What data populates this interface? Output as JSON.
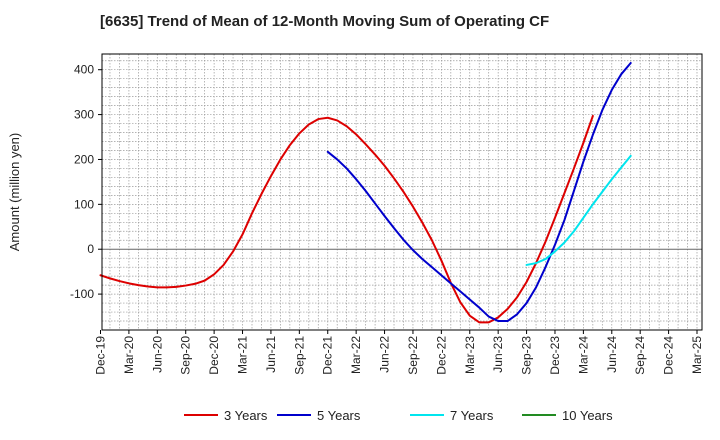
{
  "chart_data": {
    "type": "line",
    "title": "[6635]  Trend of Mean of 12-Month Moving Sum of Operating CF",
    "xlabel": "",
    "ylabel": "Amount (million yen)",
    "ylim": [
      -180,
      435
    ],
    "yticks": [
      -100,
      0,
      100,
      200,
      300,
      400
    ],
    "grid": true,
    "legend_position": "bottom",
    "x_tick_labels": [
      "Dec-19",
      "Mar-20",
      "Jun-20",
      "Sep-20",
      "Dec-20",
      "Mar-21",
      "Jun-21",
      "Sep-21",
      "Dec-21",
      "Mar-22",
      "Jun-22",
      "Sep-22",
      "Dec-22",
      "Mar-23",
      "Jun-23",
      "Sep-23",
      "Dec-23",
      "Mar-24",
      "Jun-24",
      "Sep-24",
      "Dec-24",
      "Mar-25"
    ],
    "series": [
      {
        "name": "3 Years",
        "color": "#dd0000",
        "start_index": 0,
        "values": [
          -58,
          -65,
          -71,
          -76,
          -80,
          -83,
          -85,
          -85,
          -84,
          -81,
          -77,
          -70,
          -56,
          -35,
          -5,
          33,
          80,
          123,
          163,
          200,
          232,
          258,
          278,
          290,
          293,
          287,
          274,
          256,
          234,
          211,
          186,
          158,
          128,
          95,
          59,
          20,
          -25,
          -75,
          -118,
          -148,
          -163,
          -163,
          -152,
          -133,
          -107,
          -73,
          -31,
          17,
          70,
          125,
          180,
          237,
          297
        ]
      },
      {
        "name": "5 Years",
        "color": "#0000cc",
        "start_index": 24,
        "values": [
          217,
          200,
          180,
          156,
          130,
          102,
          74,
          47,
          21,
          -2,
          -22,
          -40,
          -58,
          -76,
          -94,
          -112,
          -130,
          -150,
          -160,
          -160,
          -145,
          -120,
          -85,
          -40,
          10,
          65,
          130,
          195,
          255,
          310,
          355,
          390,
          415
        ]
      },
      {
        "name": "7 Years",
        "color": "#00e5ee",
        "start_index": 45,
        "values": [
          -35,
          -31,
          -22,
          -5,
          15,
          40,
          70,
          100,
          128,
          156,
          182,
          208
        ]
      },
      {
        "name": "10 Years",
        "color": "#228b22",
        "start_index": 0,
        "values": []
      }
    ]
  }
}
